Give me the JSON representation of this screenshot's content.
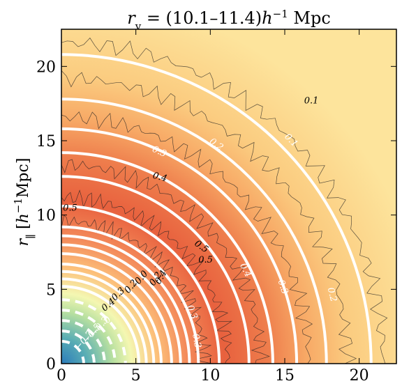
{
  "chart_data": {
    "type": "heatmap",
    "title": "r_v = (10.1–11.4) h⁻¹ Mpc",
    "title_parts": {
      "r": "r",
      "sub": "v",
      "eq": " = (10.1–11.4)",
      "h": "h",
      "sup": "−1",
      "unit": " Mpc"
    },
    "xlabel": "",
    "ylabel_parts": {
      "r": "r",
      "sub": "∥",
      "pre": "  [",
      "h": "h",
      "sup": "−1",
      "unit": "Mpc]"
    },
    "xlim": [
      0,
      22.5
    ],
    "ylim": [
      0,
      22.5
    ],
    "x_ticks": [
      {
        "value": 0,
        "label": "0"
      },
      {
        "value": 5,
        "label": "5"
      },
      {
        "value": 10,
        "label": "10"
      },
      {
        "value": 15,
        "label": "15"
      },
      {
        "value": 20,
        "label": "20"
      }
    ],
    "y_ticks": [
      {
        "value": 0,
        "label": "0"
      },
      {
        "value": 5,
        "label": "5"
      },
      {
        "value": 10,
        "label": "10"
      },
      {
        "value": 15,
        "label": "15"
      },
      {
        "value": 20,
        "label": "20"
      }
    ],
    "colormap": [
      "#2b7bba",
      "#7ec3a8",
      "#e6f5a0",
      "#fdd27f",
      "#fca866",
      "#e8573c"
    ],
    "white_contours_solid": [
      {
        "radius": 20.8,
        "label": "0.1",
        "label_x": 15.3,
        "label_y": 14.9
      },
      {
        "radius": 17.8,
        "label": "0.2",
        "label_x": 18.0,
        "label_y": 4.6
      },
      {
        "radius": 15.8,
        "label": "0.2",
        "label_x": 10.3,
        "label_y": 14.6
      },
      {
        "radius": 14.2,
        "label": "0.3",
        "label_x": 14.7,
        "label_y": 5.1
      },
      {
        "radius": 12.6,
        "label": "0.3",
        "label_x": 6.5,
        "label_y": 14.1
      },
      {
        "radius": 10.6,
        "label": "0.4",
        "label_x": 12.2,
        "label_y": 6.2
      },
      {
        "radius": 9.2,
        "label": "",
        "label_x": 0,
        "label_y": 0
      },
      {
        "radius": 8.6,
        "label": "0.3",
        "label_x": 8.6,
        "label_y": 3.4
      },
      {
        "radius": 8.0,
        "label": "0.3",
        "label_x": 8.9,
        "label_y": 1.5
      },
      {
        "radius": 7.4,
        "label": "",
        "label_x": 0,
        "label_y": 0
      },
      {
        "radius": 6.7,
        "label": "",
        "label_x": 0,
        "label_y": 0
      },
      {
        "radius": 6.2,
        "label": "",
        "label_x": 0,
        "label_y": 0
      },
      {
        "radius": 5.7,
        "label": "",
        "label_x": 0,
        "label_y": 0
      },
      {
        "radius": 5.2,
        "label": "",
        "label_x": 0,
        "label_y": 0
      }
    ],
    "white_contours_dashed": [
      {
        "radius": 4.3,
        "label": "0"
      },
      {
        "radius": 3.6,
        "label": "−0.3"
      },
      {
        "radius": 2.9,
        "label": "−0.5"
      },
      {
        "radius": 2.2,
        "label": "−0.7"
      },
      {
        "radius": 1.5,
        "label": ""
      }
    ],
    "dark_contour_labels": [
      {
        "text": "0.1",
        "x": 16.3,
        "y": 17.5,
        "rot": 0
      },
      {
        "text": "0.4",
        "x": 6.1,
        "y": 12.5,
        "rot": 15
      },
      {
        "text": "0.5",
        "x": 0.1,
        "y": 10.3,
        "rot": 0
      },
      {
        "text": "0.5",
        "x": 8.9,
        "y": 8.0,
        "rot": 35
      },
      {
        "text": "0.5",
        "x": 9.2,
        "y": 6.8,
        "rot": 0
      },
      {
        "text": "0.4",
        "x": 6.6,
        "y": 5.3,
        "rot": -60
      },
      {
        "text": "0.2",
        "x": 6.2,
        "y": 5.2,
        "rot": -55
      },
      {
        "text": "0.0",
        "x": 5.2,
        "y": 5.3,
        "rot": -50
      },
      {
        "text": "0.2",
        "x": 4.5,
        "y": 4.7,
        "rot": -50
      },
      {
        "text": "0.3",
        "x": 3.6,
        "y": 4.2,
        "rot": -45
      },
      {
        "text": "0.4",
        "x": 2.9,
        "y": 3.5,
        "rot": -40
      }
    ]
  }
}
